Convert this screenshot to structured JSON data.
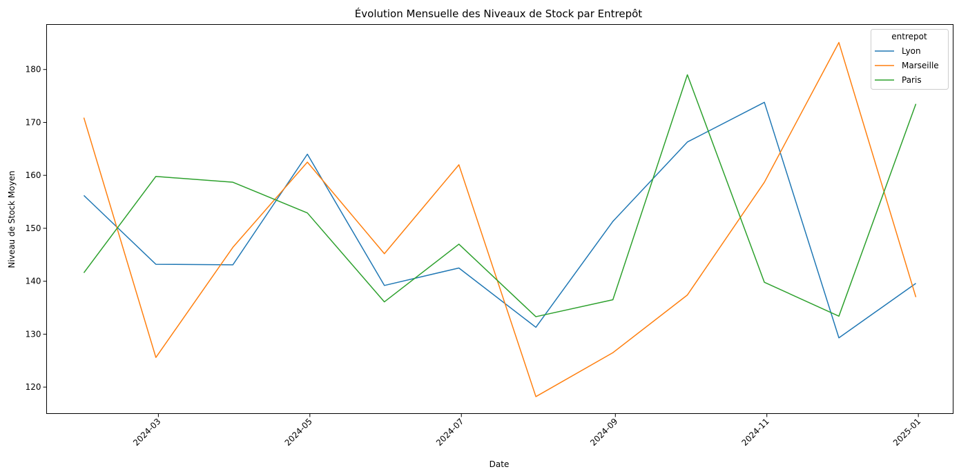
{
  "chart_data": {
    "type": "line",
    "title": "Évolution Mensuelle des Niveaux de Stock par Entrepôt",
    "xlabel": "Date",
    "ylabel": "Niveau de Stock Moyen",
    "x": [
      "2024-01-31",
      "2024-02-29",
      "2024-03-31",
      "2024-04-30",
      "2024-05-31",
      "2024-06-30",
      "2024-07-31",
      "2024-08-31",
      "2024-09-30",
      "2024-10-31",
      "2024-11-30",
      "2024-12-31"
    ],
    "xlim": [
      "2024-01-16",
      "2025-01-15"
    ],
    "xticks": [
      {
        "value": "2024-03-01",
        "label": "2024-03"
      },
      {
        "value": "2024-05-01",
        "label": "2024-05"
      },
      {
        "value": "2024-07-01",
        "label": "2024-07"
      },
      {
        "value": "2024-09-01",
        "label": "2024-09"
      },
      {
        "value": "2024-11-01",
        "label": "2024-11"
      },
      {
        "value": "2025-01-01",
        "label": "2025-01"
      }
    ],
    "ylim": [
      115,
      188.5
    ],
    "yticks": [
      120,
      130,
      140,
      150,
      160,
      170,
      180
    ],
    "legend": {
      "title": "entrepot",
      "position": "top-right"
    },
    "series": [
      {
        "name": "Lyon",
        "color": "#1f77b4",
        "values": [
          156.2,
          143.2,
          143.1,
          164.0,
          139.2,
          142.5,
          131.3,
          151.3,
          166.3,
          173.8,
          129.3,
          139.6
        ]
      },
      {
        "name": "Marseille",
        "color": "#ff7f0e",
        "values": [
          170.9,
          125.6,
          146.4,
          162.5,
          145.2,
          162.0,
          118.2,
          126.5,
          137.4,
          158.7,
          185.1,
          137.0
        ]
      },
      {
        "name": "Paris",
        "color": "#2ca02c",
        "values": [
          141.6,
          159.8,
          158.7,
          152.9,
          136.1,
          147.0,
          133.3,
          136.5,
          179.0,
          139.8,
          133.4,
          173.5
        ]
      }
    ]
  }
}
